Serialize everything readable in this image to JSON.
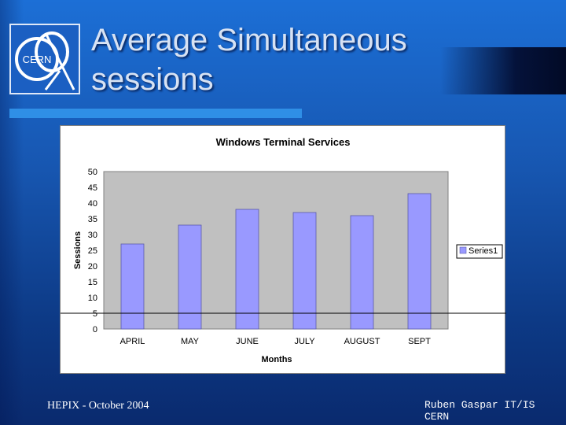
{
  "slide": {
    "title": "Average Simultaneous sessions",
    "footer_left": "HEPIX - October 2004",
    "footer_right": "Ruben Gaspar IT/IS CERN",
    "logo_text": "CERN"
  },
  "colors": {
    "background": "#1756b0",
    "accent_bar": "#2f8fe6",
    "plot_area": "#c0c0c0",
    "bar_fill": "#9999ff",
    "bar_stroke": "#5a5aa8"
  },
  "chart_data": {
    "type": "bar",
    "title": "Windows Terminal Services",
    "xlabel": "Months",
    "ylabel": "Sessions",
    "categories": [
      "APRIL",
      "MAY",
      "JUNE",
      "JULY",
      "AUGUST",
      "SEPT"
    ],
    "series": [
      {
        "name": "Series1",
        "values": [
          27,
          33,
          38,
          37,
          36,
          43
        ]
      }
    ],
    "ylim": [
      0,
      50
    ],
    "yticks": [
      "0",
      "5",
      "10",
      "15",
      "20",
      "25",
      "30",
      "35",
      "40",
      "45",
      "50"
    ],
    "grid": false,
    "legend": "right"
  }
}
